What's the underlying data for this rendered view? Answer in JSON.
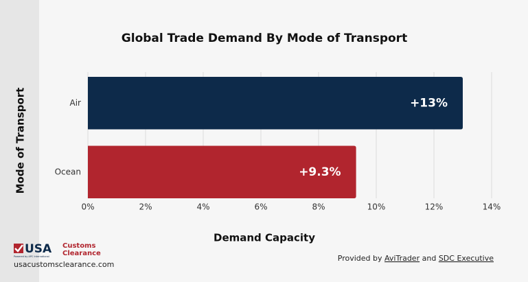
{
  "chart_data": {
    "type": "bar",
    "orientation": "horizontal",
    "title": "Global Trade Demand By Mode of Transport",
    "x_label": "Demand Capacity",
    "y_label": "Mode of Transport",
    "categories": [
      "Air",
      "Ocean"
    ],
    "values": [
      13,
      9.3
    ],
    "value_labels": [
      "+13%",
      "+9.3%"
    ],
    "colors": [
      "#0d2a4a",
      "#b1252e"
    ],
    "xlim": [
      0,
      14
    ],
    "xticks": [
      {
        "value": 0,
        "label": "0%"
      },
      {
        "value": 2,
        "label": "2%"
      },
      {
        "value": 4,
        "label": "4%"
      },
      {
        "value": 6,
        "label": "6%"
      },
      {
        "value": 8,
        "label": "8%"
      },
      {
        "value": 10,
        "label": "10%"
      },
      {
        "value": 12,
        "label": "12%"
      },
      {
        "value": 14,
        "label": "14%"
      }
    ],
    "grid": true
  },
  "footer": {
    "logo": {
      "usa": "USA",
      "customs": "Customs",
      "clearance": "Clearance",
      "tagline": "Powered by APC International"
    },
    "website": "usacustomsclearance.com",
    "credit": {
      "prefix": "Provided by",
      "source1": "AviTrader",
      "joiner": "and",
      "source2": "SDC Executive"
    }
  }
}
